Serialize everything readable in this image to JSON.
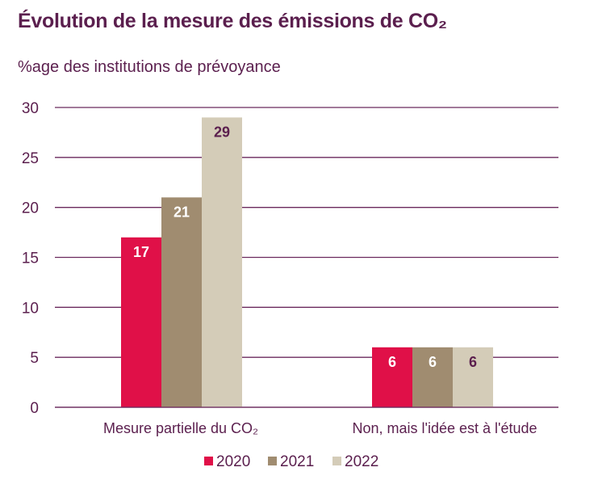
{
  "chart_data": {
    "type": "bar",
    "title": "Évolution de la mesure des émissions de CO₂",
    "subtitle": "%age des institutions de prévoyance",
    "xlabel": "",
    "ylabel": "",
    "ylim": [
      0,
      30
    ],
    "yticks": [
      "0",
      "5",
      "10",
      "15",
      "20",
      "25",
      "30"
    ],
    "grid": true,
    "legend_position": "bottom",
    "categories": [
      "Mesure partielle du CO₂",
      "Non, mais l'idée est à l'étude"
    ],
    "series": [
      {
        "name": "2020",
        "values": [
          17,
          6
        ],
        "color": "#e01048",
        "label_color": "#ffffff"
      },
      {
        "name": "2021",
        "values": [
          21,
          6
        ],
        "color": "#a08c70",
        "label_color": "#ffffff"
      },
      {
        "name": "2022",
        "values": [
          29,
          6
        ],
        "color": "#d4ccb8",
        "label_color": "#5b1f4e"
      }
    ],
    "gridline_color": "#6b2a5e",
    "text_color": "#5b1f4e"
  }
}
